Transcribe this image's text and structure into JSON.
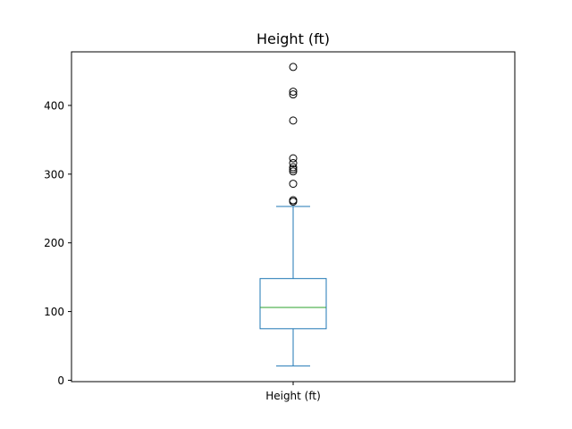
{
  "chart_data": {
    "type": "box",
    "title": "Height (ft)",
    "xlabel": "",
    "ylabel": "",
    "categories": [
      "Height (ft)"
    ],
    "ylim": [
      -2,
      478
    ],
    "yticks": [
      0,
      100,
      200,
      300,
      400
    ],
    "grid": false,
    "legend": "none",
    "series": [
      {
        "whisker_low": 21,
        "q1": 75,
        "median": 106,
        "q3": 148,
        "whisker_high": 253,
        "outliers": [
          260,
          262,
          286,
          304,
          307,
          310,
          316,
          323,
          378,
          416,
          420,
          456
        ]
      }
    ],
    "colors": {
      "box": "#1f77b4",
      "median": "#2ca02c",
      "outlier": "#000000"
    }
  }
}
